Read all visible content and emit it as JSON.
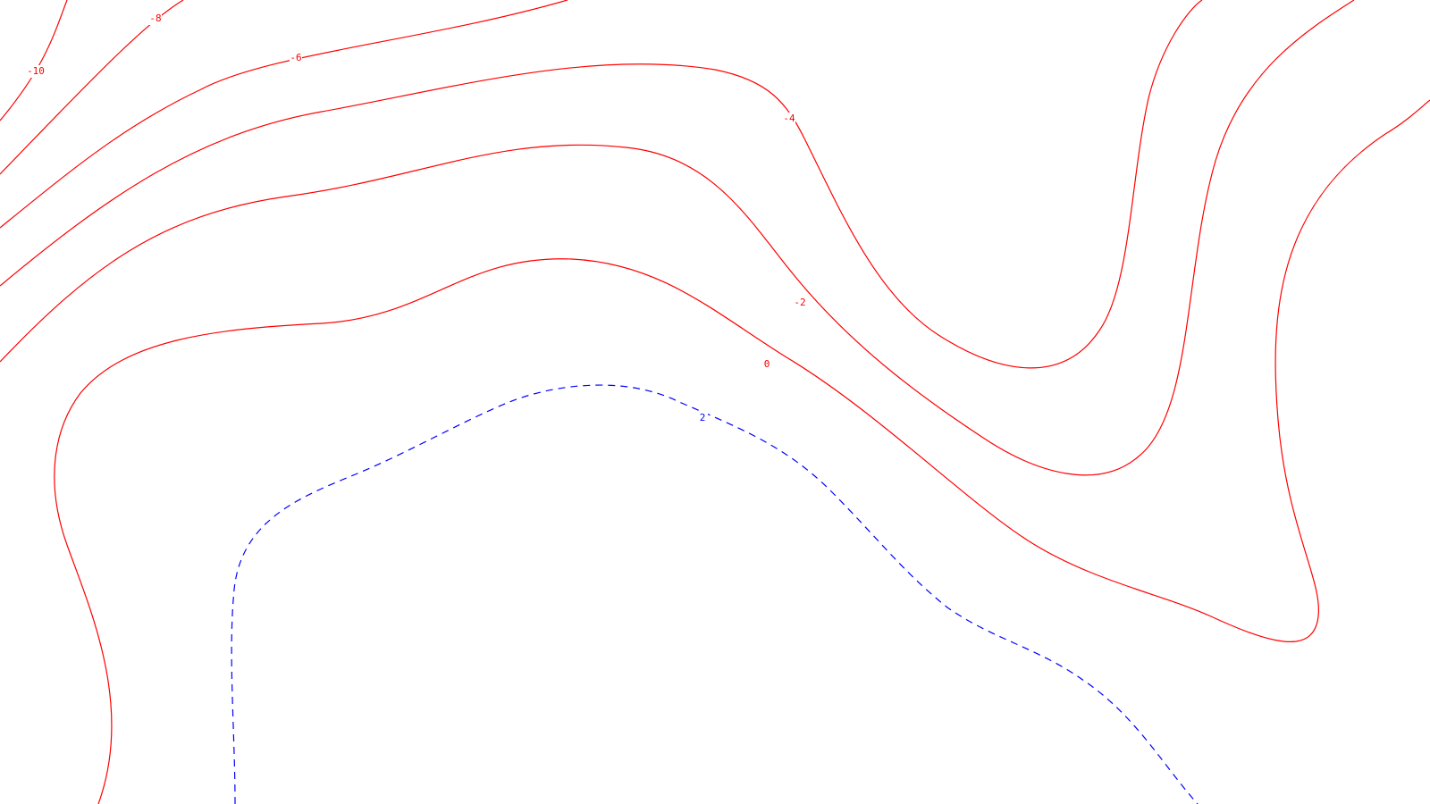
{
  "map": {
    "type": "contour",
    "background": "#ffffff",
    "colors": {
      "non_negative": "#ff0000",
      "negative": "#0000ff"
    },
    "line_style": {
      "non_negative": "solid",
      "negative": "dashed"
    },
    "contour_labels": [
      {
        "value": "-10"
      },
      {
        "value": "-8"
      },
      {
        "value": "-6"
      },
      {
        "value": "-4"
      },
      {
        "value": "-2"
      },
      {
        "value": "0"
      },
      {
        "value": "2"
      }
    ]
  }
}
